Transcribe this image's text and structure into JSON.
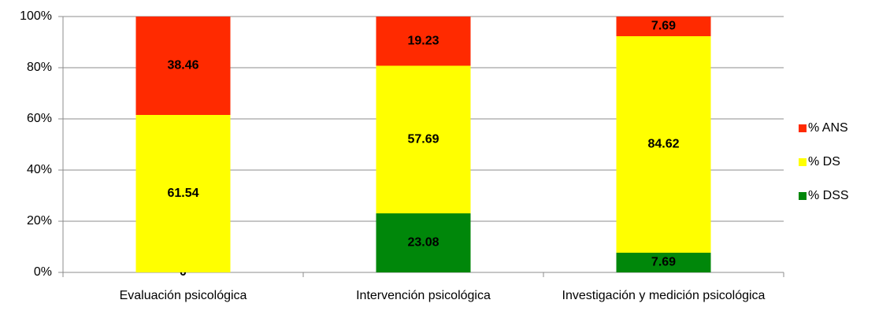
{
  "chart_data": {
    "type": "bar",
    "stacked": true,
    "categories": [
      "Evaluación psicológica",
      "Intervención psicológica",
      "Investigación y medición psicológica"
    ],
    "series": [
      {
        "name": "% DSS",
        "color": "#00870a",
        "values": [
          0,
          23.08,
          7.69
        ]
      },
      {
        "name": "% DS",
        "color": "#ffff00",
        "values": [
          61.54,
          57.69,
          84.62
        ]
      },
      {
        "name": "% ANS",
        "color": "#ff2a00",
        "values": [
          38.46,
          19.23,
          7.69
        ]
      }
    ],
    "ylim": [
      0,
      100
    ],
    "yticks": [
      {
        "value": 0,
        "label": "0%"
      },
      {
        "value": 20,
        "label": "20%"
      },
      {
        "value": 40,
        "label": "40%"
      },
      {
        "value": 60,
        "label": "60%"
      },
      {
        "value": 80,
        "label": "80%"
      },
      {
        "value": 100,
        "label": "100%"
      }
    ],
    "grid": true,
    "legend": "right"
  }
}
